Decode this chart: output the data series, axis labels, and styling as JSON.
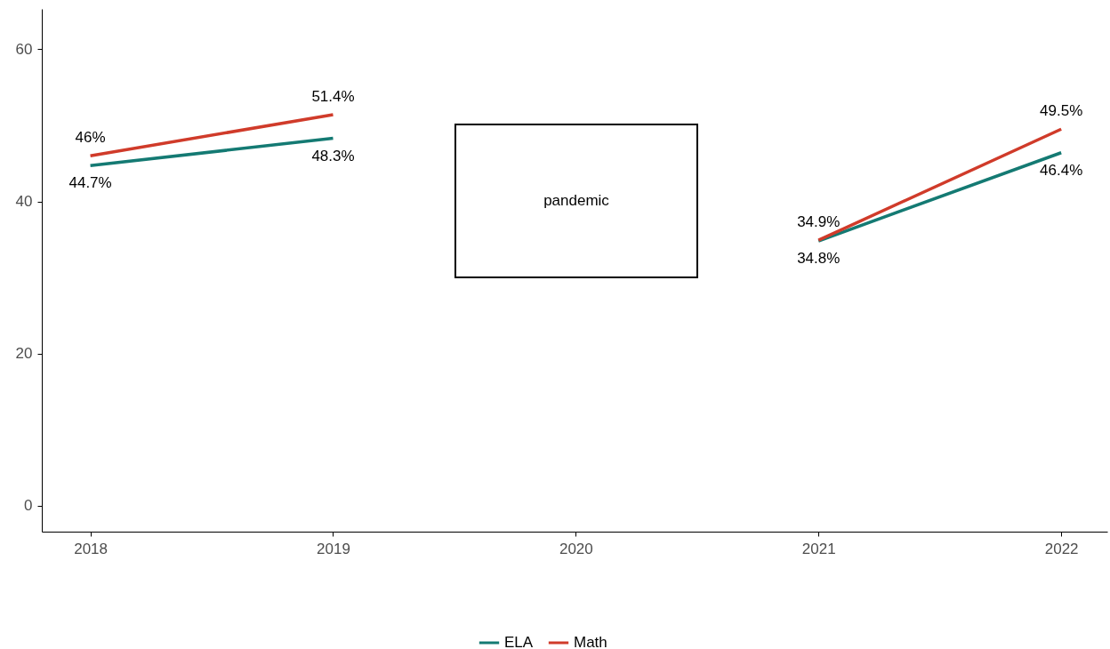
{
  "chart_data": {
    "type": "line",
    "x": [
      2018,
      2019,
      2020,
      2021,
      2022
    ],
    "series": [
      {
        "name": "ELA",
        "color": "#147a73",
        "values": [
          44.7,
          48.3,
          null,
          34.8,
          46.4
        ],
        "value_labels": [
          "44.7%",
          "48.3%",
          null,
          "34.8%",
          "46.4%"
        ]
      },
      {
        "name": "Math",
        "color": "#d03b2a",
        "values": [
          46,
          51.4,
          null,
          34.9,
          49.5
        ],
        "value_labels": [
          "46%",
          "51.4%",
          null,
          "34.9%",
          "49.5%"
        ]
      }
    ],
    "xlim": [
      2017.8,
      2022.19
    ],
    "xticks": [
      2018,
      2019,
      2020,
      2021,
      2022
    ],
    "ylim": [
      -3.4,
      65.3
    ],
    "yticks": [
      0,
      20,
      40,
      60
    ],
    "annotations": [
      "pandemic"
    ],
    "grid": false,
    "legend": "bottom",
    "marker": "none",
    "line_style": "solid"
  }
}
